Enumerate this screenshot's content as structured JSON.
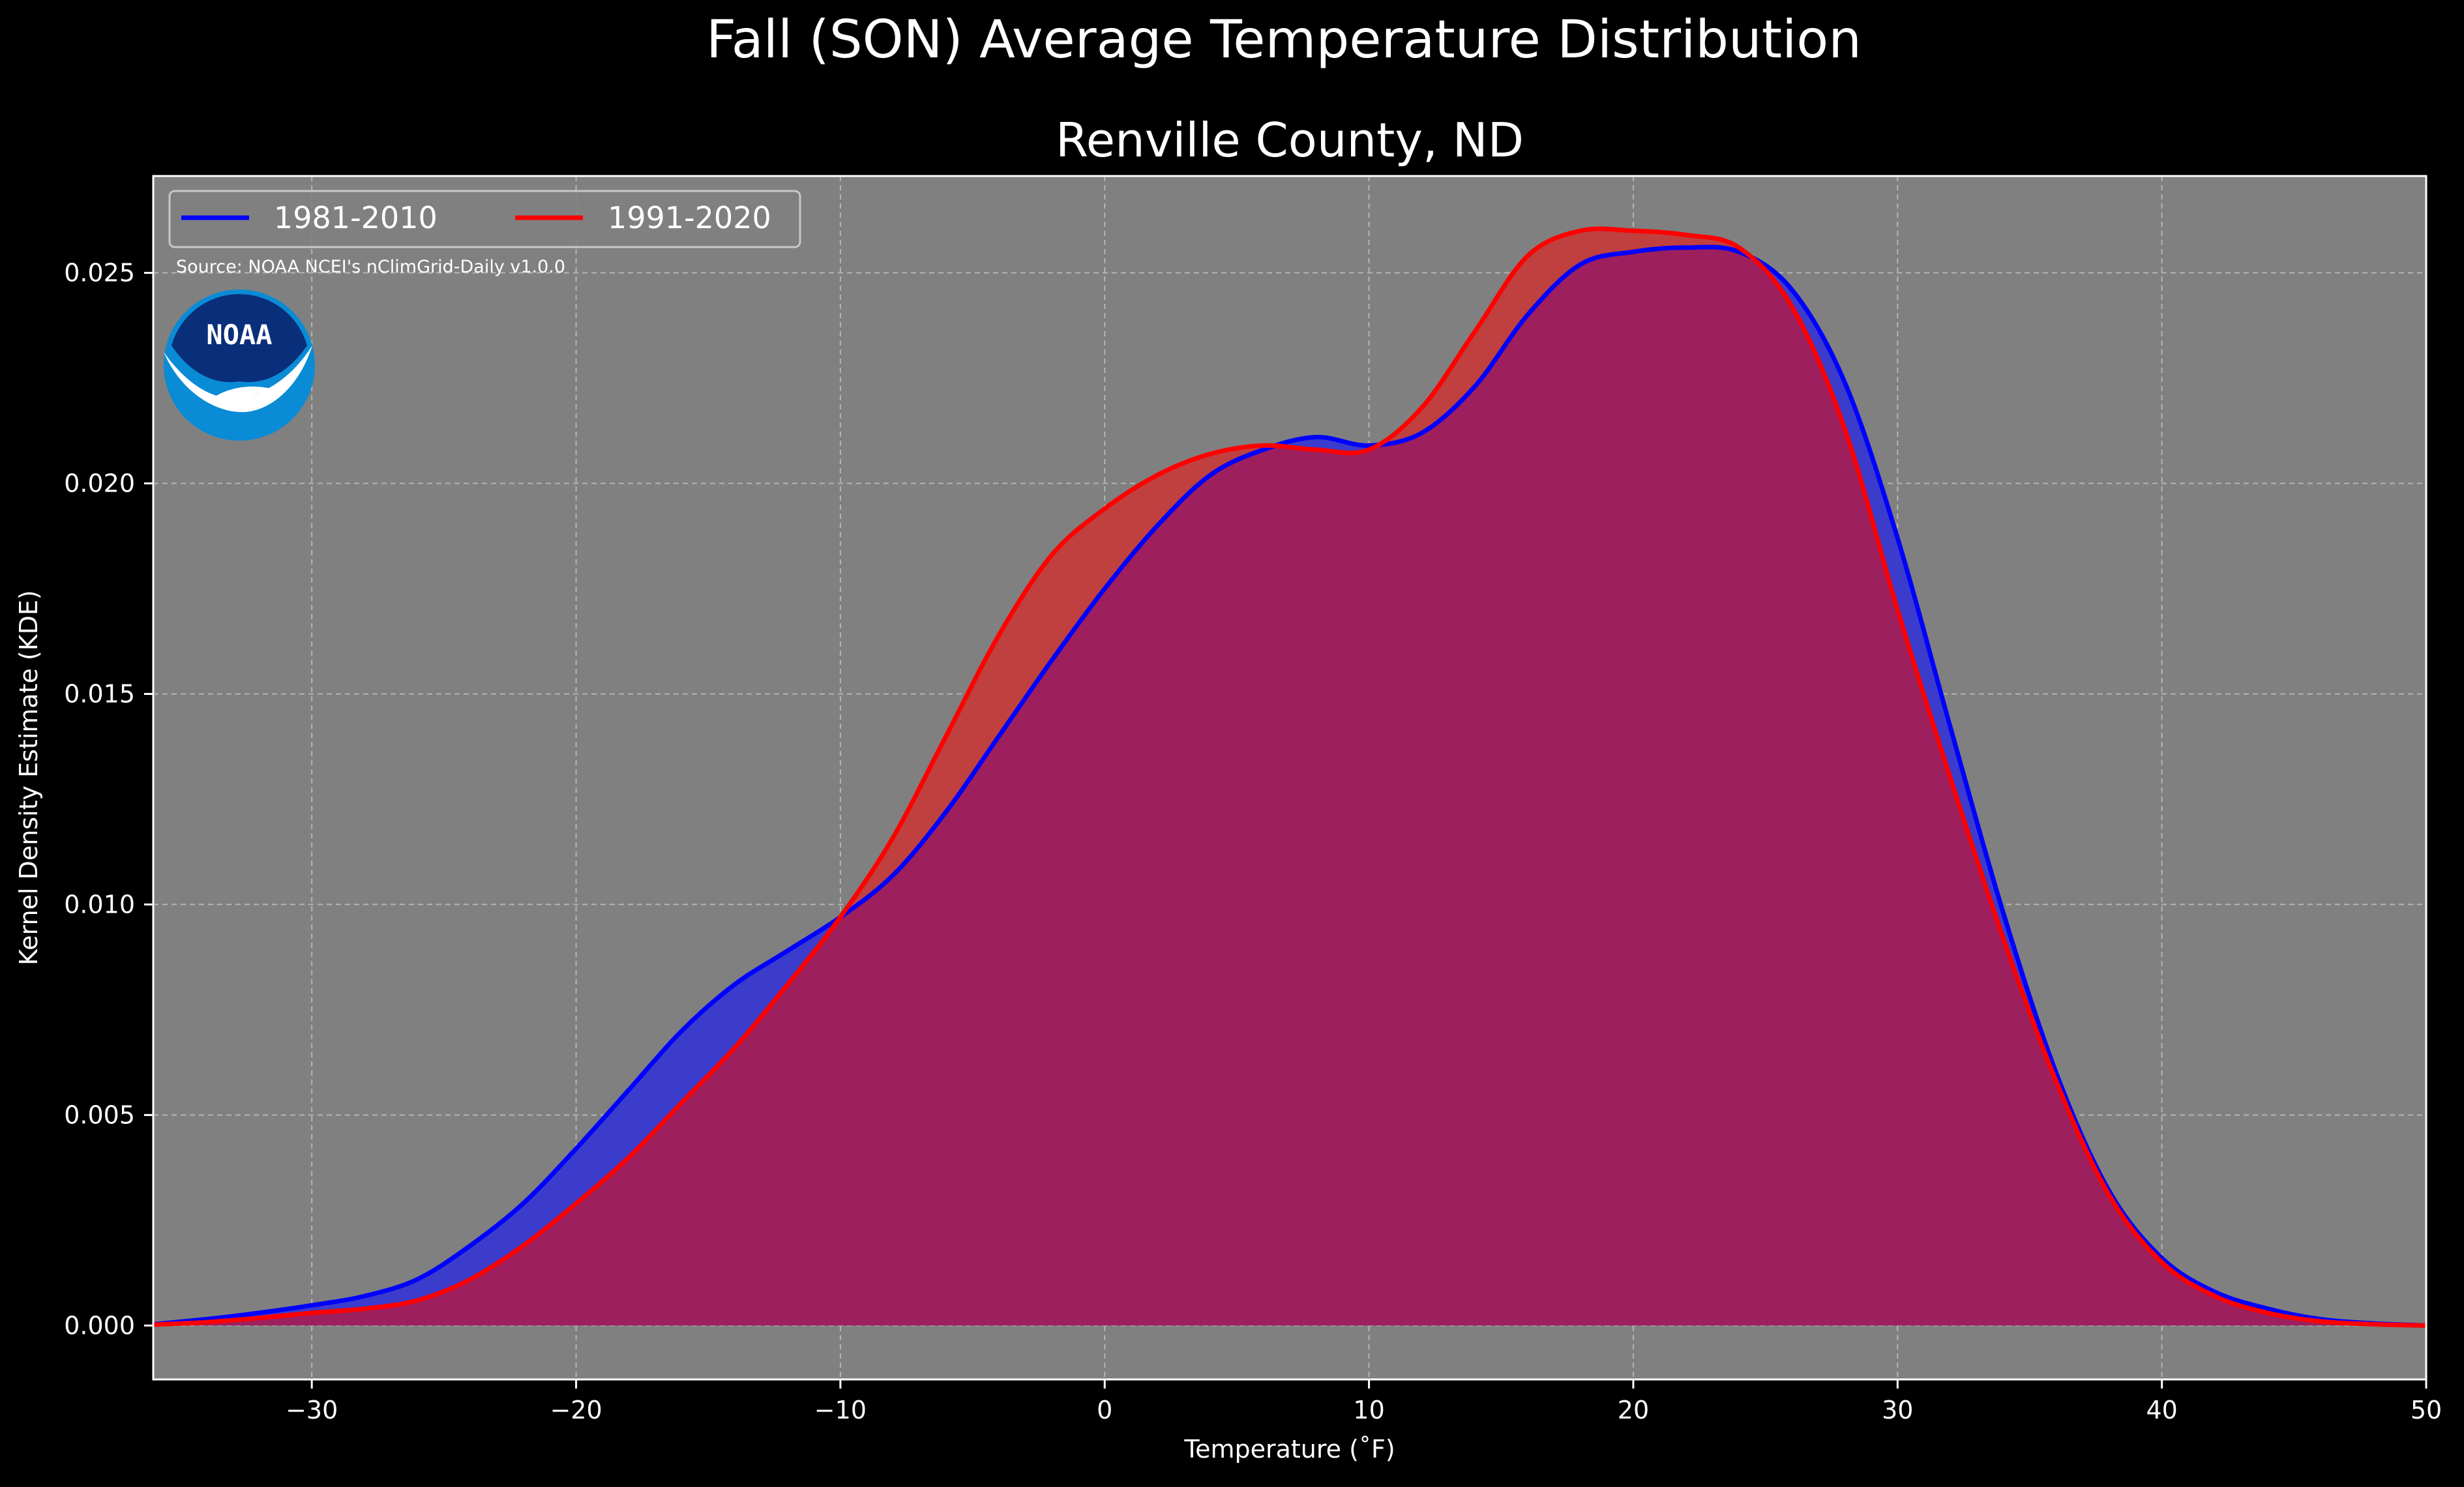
{
  "chart_data": {
    "type": "area",
    "suptitle": "Fall (SON) Average Temperature Distribution",
    "title": "Renville County, ND",
    "xlabel": "Temperature ($^\\circ$F)",
    "xlabel_display": "Temperature (˚F)",
    "ylabel": "Kernel Density Estimate (KDE)",
    "xlim": [
      -36,
      50
    ],
    "ylim": [
      -0.00128,
      0.0273
    ],
    "x_ticks": [
      -30,
      -20,
      -10,
      0,
      10,
      20,
      30,
      40,
      50
    ],
    "x_tick_labels": [
      "−30",
      "−20",
      "−10",
      "0",
      "10",
      "20",
      "30",
      "40",
      "50"
    ],
    "y_ticks": [
      0.0,
      0.005,
      0.01,
      0.015,
      0.02,
      0.025
    ],
    "y_tick_labels": [
      "0.000",
      "0.005",
      "0.010",
      "0.015",
      "0.020",
      "0.025"
    ],
    "grid": true,
    "legend_position": "top-left",
    "source_note": "Source: NOAA NCEI's nClimGrid-Daily v1.0.0",
    "logo_text": "NOAA",
    "colors": {
      "figure_bg": "#000000",
      "axes_bg": "#808080",
      "grid": "#b5b5b5",
      "text": "#ffffff",
      "blue_line": "#0000ff",
      "blue_fill": "#3c3ccc",
      "red_line": "#ff0000",
      "red_fill": "#c0403f",
      "overlap_fill": "#9e1f5e",
      "noaa_outer": "#0a8bd6",
      "noaa_inner": "#0a2f7a"
    },
    "series": [
      {
        "name": "1981-2010",
        "color": "#0000ff",
        "x": [
          -36,
          -34,
          -32,
          -30,
          -28,
          -26,
          -24,
          -22,
          -20,
          -18,
          -16,
          -14,
          -12,
          -10,
          -8,
          -6,
          -4,
          -2,
          0,
          2,
          4,
          6,
          8,
          10,
          12,
          14,
          16,
          18,
          20,
          22,
          24,
          26,
          28,
          30,
          32,
          34,
          36,
          38,
          40,
          42,
          44,
          46,
          48,
          50
        ],
        "y": [
          3e-05,
          0.00015,
          0.0003,
          0.00048,
          0.0007,
          0.0011,
          0.0019,
          0.0029,
          0.0042,
          0.0056,
          0.007,
          0.0081,
          0.0089,
          0.0097,
          0.0107,
          0.0122,
          0.014,
          0.0158,
          0.0175,
          0.019,
          0.0202,
          0.0208,
          0.0211,
          0.0209,
          0.0212,
          0.0223,
          0.024,
          0.0252,
          0.0255,
          0.0256,
          0.0255,
          0.0246,
          0.0224,
          0.0187,
          0.0142,
          0.0098,
          0.006,
          0.0032,
          0.0016,
          0.0008,
          0.0004,
          0.00015,
          5e-05,
          0.0
        ]
      },
      {
        "name": "1991-2020",
        "color": "#ff0000",
        "x": [
          -36,
          -34,
          -32,
          -30,
          -28,
          -26,
          -24,
          -22,
          -20,
          -18,
          -16,
          -14,
          -12,
          -10,
          -8,
          -6,
          -4,
          -2,
          0,
          2,
          4,
          6,
          8,
          10,
          12,
          14,
          16,
          18,
          20,
          22,
          24,
          26,
          28,
          30,
          32,
          34,
          36,
          38,
          40,
          42,
          44,
          46,
          48,
          50
        ],
        "y": [
          2e-05,
          8e-05,
          0.00018,
          0.0003,
          0.0004,
          0.0006,
          0.0011,
          0.0019,
          0.0029,
          0.004,
          0.0053,
          0.0066,
          0.0081,
          0.0097,
          0.0116,
          0.014,
          0.0164,
          0.0183,
          0.0194,
          0.0202,
          0.0207,
          0.0209,
          0.0208,
          0.0208,
          0.0218,
          0.0236,
          0.0254,
          0.026,
          0.026,
          0.0259,
          0.0256,
          0.0242,
          0.0213,
          0.017,
          0.013,
          0.0092,
          0.0058,
          0.0031,
          0.0015,
          0.0007,
          0.0003,
          0.0001,
          3e-05,
          0.0
        ]
      }
    ]
  }
}
